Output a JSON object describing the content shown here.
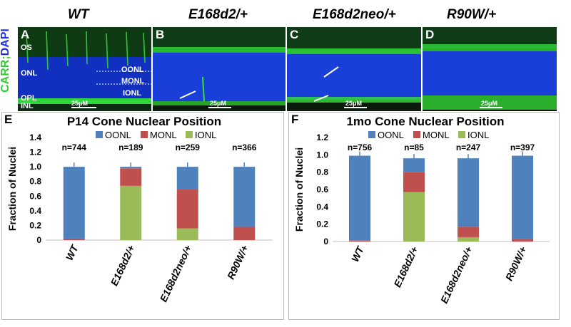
{
  "figure": {
    "side_label": {
      "part1": "CARR;",
      "part2": "DAPI"
    },
    "genotypes": [
      "WT",
      "E168d2/+",
      "E168d2neo/+",
      "R90W/+"
    ],
    "micro_panels": [
      {
        "letter": "A",
        "scale": "25μM",
        "layers": [
          "OS",
          "ONL",
          "OPL",
          "INL"
        ],
        "zones": [
          "OONL",
          "MONL",
          "IONL"
        ]
      },
      {
        "letter": "B",
        "scale": "25μM"
      },
      {
        "letter": "C",
        "scale": "25μM"
      },
      {
        "letter": "D",
        "scale": "25μM"
      }
    ],
    "colors": {
      "OONL": "#4f81bd",
      "MONL": "#c0504d",
      "IONL": "#9bbb59",
      "green": "#35e035",
      "blue": "#1a3fd8",
      "error": "#4f81bd"
    }
  },
  "chart_data": [
    {
      "type": "bar",
      "panel": "E",
      "title": "P14 Cone Nuclear Position",
      "ylabel": "Fraction of Nuclei",
      "ylim": [
        0,
        1.4
      ],
      "yticks": [
        "0",
        "0.2",
        "0.4",
        "0.6",
        "0.8",
        "1.0",
        "1.2",
        "1.4"
      ],
      "categories": [
        "WT",
        "E168d2/+",
        "E168d2neo/+",
        "R90W/+"
      ],
      "n_labels": [
        "n=744",
        "n=189",
        "n=259",
        "n=366"
      ],
      "stacked": true,
      "series": [
        {
          "name": "IONL",
          "values": [
            0.0,
            0.74,
            0.16,
            0.0
          ]
        },
        {
          "name": "MONL",
          "values": [
            0.02,
            0.24,
            0.53,
            0.18
          ]
        },
        {
          "name": "OONL",
          "values": [
            0.98,
            0.02,
            0.31,
            0.82
          ]
        }
      ],
      "legend": [
        "OONL",
        "MONL",
        "IONL"
      ],
      "legend_position": "top"
    },
    {
      "type": "bar",
      "panel": "F",
      "title": "1mo Cone Nuclear Position",
      "ylabel": "Fraction of Nuclei",
      "ylim": [
        0,
        1.2
      ],
      "yticks": [
        "0",
        "0.2",
        "0.4",
        "0.6",
        "0.8",
        "1.0",
        "1.2"
      ],
      "categories": [
        "WT",
        "E168d2/+",
        "E168d2neo/+",
        "R90W/+"
      ],
      "n_labels": [
        "n=756",
        "n=85",
        "n=247",
        "n=397"
      ],
      "stacked": true,
      "series": [
        {
          "name": "IONL",
          "values": [
            0.0,
            0.57,
            0.05,
            0.0
          ]
        },
        {
          "name": "MONL",
          "values": [
            0.01,
            0.23,
            0.12,
            0.03
          ]
        },
        {
          "name": "OONL",
          "values": [
            0.98,
            0.16,
            0.79,
            0.96
          ]
        }
      ],
      "legend": [
        "OONL",
        "MONL",
        "IONL"
      ],
      "legend_position": "top"
    }
  ]
}
